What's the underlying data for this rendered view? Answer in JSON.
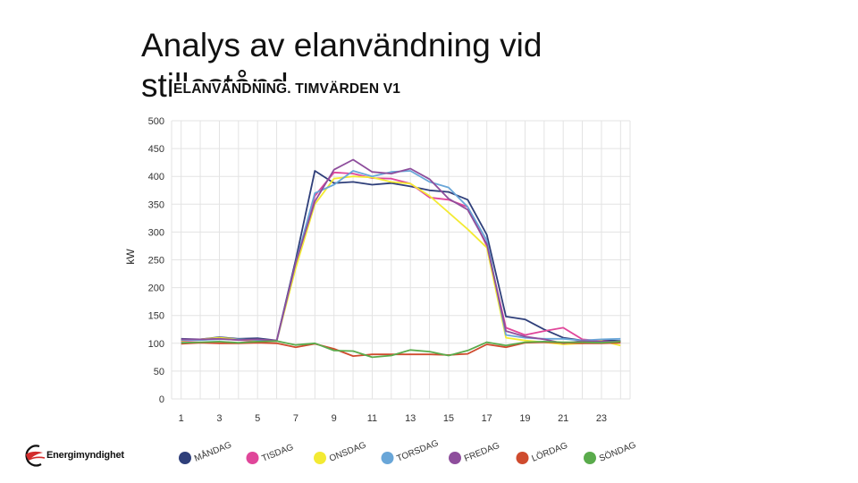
{
  "slide": {
    "title": "Analys av elanvändning vid stillestånd"
  },
  "logo": {
    "text": "Energimyndighet"
  },
  "colors": {
    "MÅNDAG": "#2f3f7a",
    "TISDAG": "#e0469a",
    "ONSDAG": "#f3ea33",
    "TORSDAG": "#69a6d8",
    "FREDAG": "#8e4e9c",
    "LÖRDAG": "#cf4b2e",
    "SÖNDAG": "#5aab4c",
    "grid": "#e3e3e3",
    "logo_red": "#d22b2b"
  },
  "chart_data": {
    "type": "line",
    "title": "ELANVÄNDNING. TIMVÄRDEN V1",
    "xlabel": "",
    "ylabel": "kW",
    "x": [
      1,
      2,
      3,
      4,
      5,
      6,
      7,
      8,
      9,
      10,
      11,
      12,
      13,
      14,
      15,
      16,
      17,
      18,
      19,
      20,
      21,
      22,
      23,
      24
    ],
    "xticks": [
      "1",
      "3",
      "5",
      "7",
      "9",
      "11",
      "13",
      "15",
      "17",
      "19",
      "21",
      "23"
    ],
    "yticks": [
      "0",
      "50",
      "100",
      "150",
      "200",
      "250",
      "300",
      "350",
      "400",
      "450",
      "500"
    ],
    "xlim": [
      0.5,
      24.5
    ],
    "ylim": [
      0,
      500
    ],
    "grid": true,
    "legend_position": "bottom",
    "series": [
      {
        "name": "MÅNDAG",
        "values": [
          108,
          107,
          111,
          108,
          109,
          105,
          250,
          410,
          388,
          390,
          385,
          388,
          382,
          375,
          372,
          358,
          295,
          148,
          143,
          125,
          110,
          105,
          106,
          104
        ]
      },
      {
        "name": "TISDAG",
        "values": [
          104,
          106,
          108,
          106,
          104,
          104,
          240,
          365,
          407,
          405,
          397,
          396,
          387,
          362,
          358,
          345,
          275,
          128,
          115,
          122,
          128,
          107,
          104,
          102
        ]
      },
      {
        "name": "ONSDAG",
        "values": [
          105,
          107,
          110,
          107,
          105,
          104,
          235,
          350,
          396,
          400,
          398,
          390,
          387,
          365,
          335,
          305,
          272,
          110,
          105,
          102,
          98,
          100,
          104,
          96
        ]
      },
      {
        "name": "TORSDAG",
        "values": [
          106,
          106,
          107,
          107,
          106,
          104,
          245,
          370,
          385,
          410,
          400,
          408,
          410,
          390,
          380,
          345,
          285,
          115,
          110,
          108,
          108,
          105,
          107,
          108
        ]
      },
      {
        "name": "FREDAG",
        "values": [
          107,
          107,
          108,
          106,
          107,
          105,
          245,
          355,
          412,
          430,
          408,
          405,
          414,
          395,
          360,
          340,
          278,
          122,
          112,
          107,
          100,
          104,
          103,
          103
        ]
      },
      {
        "name": "LÖRDAG",
        "values": [
          99,
          101,
          100,
          100,
          101,
          100,
          93,
          99,
          90,
          77,
          80,
          80,
          80,
          80,
          79,
          81,
          98,
          93,
          101,
          102,
          101,
          100,
          100,
          101
        ]
      },
      {
        "name": "SÖNDAG",
        "values": [
          101,
          102,
          103,
          101,
          103,
          104,
          97,
          100,
          87,
          86,
          75,
          78,
          88,
          85,
          78,
          87,
          102,
          96,
          102,
          103,
          102,
          102,
          101,
          103
        ]
      }
    ]
  }
}
